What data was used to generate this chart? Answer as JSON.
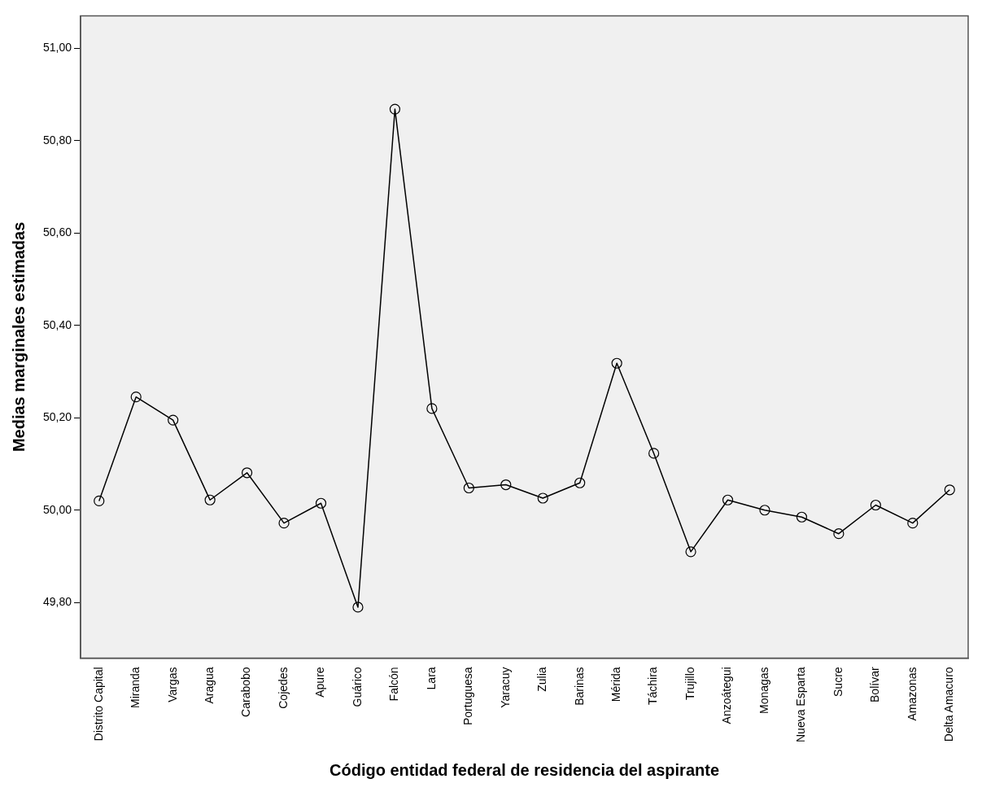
{
  "chart_data": {
    "type": "line",
    "xlabel": "Código entidad federal de residencia del aspirante",
    "ylabel": "Medias marginales estimadas",
    "categories": [
      "Distrito Capital",
      "Miranda",
      "Vargas",
      "Aragua",
      "Carabobo",
      "Cojedes",
      "Apure",
      "Guárico",
      "Falcón",
      "Lara",
      "Portuguesa",
      "Yaracuy",
      "Zulia",
      "Barinas",
      "Mérida",
      "Táchira",
      "Trujillo",
      "Anzoátegui",
      "Monagas",
      "Nueva Esparta",
      "Sucre",
      "Bolívar",
      "Amazonas",
      "Delta Amacuro"
    ],
    "series": [
      {
        "color": "#000000",
        "values": [
          50.02,
          50.245,
          50.195,
          50.022,
          50.081,
          49.972,
          50.015,
          49.79,
          50.868,
          50.22,
          50.048,
          50.055,
          50.026,
          50.059,
          50.318,
          50.123,
          49.91,
          50.022,
          50.0,
          49.985,
          49.949,
          50.011,
          49.972,
          50.044
        ]
      }
    ],
    "ylim": [
      49.68,
      51.07
    ],
    "yticks": [
      {
        "value": 49.8,
        "label": "49,80"
      },
      {
        "value": 50.0,
        "label": "50,00"
      },
      {
        "value": 50.2,
        "label": "50,20"
      },
      {
        "value": 50.4,
        "label": "50,40"
      },
      {
        "value": 50.6,
        "label": "50,60"
      },
      {
        "value": 50.8,
        "label": "50,80"
      },
      {
        "value": 51.0,
        "label": "51,00"
      }
    ],
    "grid": false,
    "legend": false,
    "marker": "circle",
    "line_style": "solid"
  }
}
